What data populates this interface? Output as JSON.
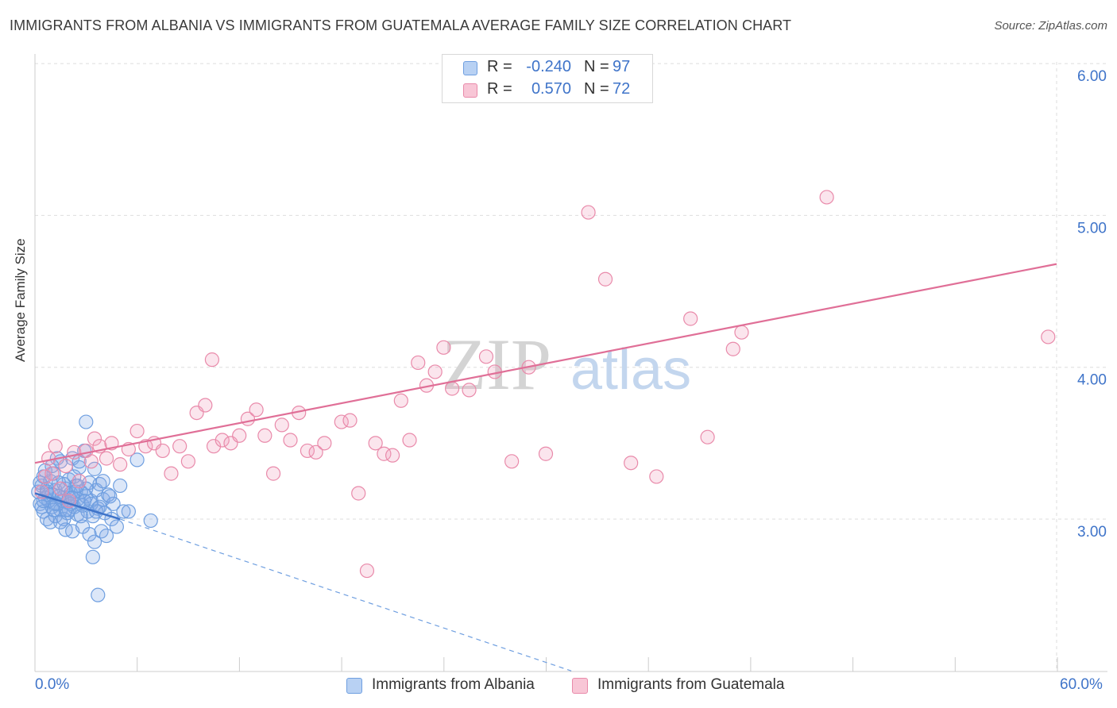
{
  "title": "IMMIGRANTS FROM ALBANIA VS IMMIGRANTS FROM GUATEMALA AVERAGE FAMILY SIZE CORRELATION CHART",
  "source": "Source: ZipAtlas.com",
  "watermark": {
    "zip": "ZIP",
    "atlas": "atlas"
  },
  "legend_top": [
    {
      "r_label": "R =",
      "r_value": "-0.240",
      "n_label": "N =",
      "n_value": "97",
      "swatch_fill": "#b8d1f3",
      "swatch_stroke": "#6f9fe0"
    },
    {
      "r_label": "R =",
      "r_value": "0.570",
      "n_label": "N =",
      "n_value": "72",
      "swatch_fill": "#f8c6d6",
      "swatch_stroke": "#e98aaa"
    }
  ],
  "colors": {
    "blue": "#3f74c9",
    "pink": "#e06f97",
    "grid": "#dddddd"
  },
  "chart_data": {
    "type": "scatter",
    "ylabel": "Average Family Size",
    "xlim": [
      0,
      60
    ],
    "ylim": [
      2.0,
      6.1
    ],
    "x_tick_labels": [
      "0.0%",
      "60.0%"
    ],
    "y_ticks": [
      3.0,
      4.0,
      5.0,
      6.0
    ],
    "y_tick_labels": [
      "3.00",
      "4.00",
      "5.00",
      "6.00"
    ],
    "grid": true,
    "legend_position": "bottom",
    "series": [
      {
        "name": "Immigrants from Albania",
        "color": "#6f9fe0",
        "points": [
          [
            0.2,
            3.18
          ],
          [
            0.3,
            3.1
          ],
          [
            0.4,
            3.22
          ],
          [
            0.5,
            3.05
          ],
          [
            0.5,
            3.28
          ],
          [
            0.6,
            3.14
          ],
          [
            0.7,
            3.2
          ],
          [
            0.7,
            3.0
          ],
          [
            0.8,
            3.12
          ],
          [
            0.9,
            3.25
          ],
          [
            1.0,
            3.08
          ],
          [
            1.0,
            3.16
          ],
          [
            1.1,
            3.3
          ],
          [
            1.2,
            3.02
          ],
          [
            1.2,
            3.19
          ],
          [
            1.3,
            3.1
          ],
          [
            1.4,
            3.24
          ],
          [
            1.5,
            3.06
          ],
          [
            1.5,
            3.38
          ],
          [
            1.6,
            3.14
          ],
          [
            1.7,
            3.0
          ],
          [
            1.8,
            3.2
          ],
          [
            1.8,
            2.93
          ],
          [
            1.9,
            3.11
          ],
          [
            2.0,
            3.26
          ],
          [
            2.0,
            3.06
          ],
          [
            2.1,
            3.17
          ],
          [
            2.2,
            3.4
          ],
          [
            2.2,
            2.92
          ],
          [
            2.3,
            3.08
          ],
          [
            2.4,
            3.22
          ],
          [
            2.5,
            3.13
          ],
          [
            2.5,
            3.03
          ],
          [
            2.6,
            3.34
          ],
          [
            2.7,
            3.18
          ],
          [
            2.8,
            2.95
          ],
          [
            2.8,
            3.09
          ],
          [
            2.9,
            3.45
          ],
          [
            3.0,
            3.15
          ],
          [
            3.0,
            3.64
          ],
          [
            3.1,
            3.05
          ],
          [
            3.2,
            3.24
          ],
          [
            3.2,
            2.9
          ],
          [
            3.3,
            3.12
          ],
          [
            3.4,
            3.02
          ],
          [
            3.5,
            3.33
          ],
          [
            3.5,
            2.85
          ],
          [
            3.6,
            3.19
          ],
          [
            3.7,
            3.07
          ],
          [
            3.8,
            3.23
          ],
          [
            3.9,
            2.92
          ],
          [
            4.0,
            3.13
          ],
          [
            4.1,
            3.04
          ],
          [
            4.2,
            2.89
          ],
          [
            4.3,
            3.16
          ],
          [
            4.5,
            3.0
          ],
          [
            4.6,
            3.1
          ],
          [
            4.8,
            2.95
          ],
          [
            5.0,
            3.22
          ],
          [
            5.2,
            3.05
          ],
          [
            3.4,
            2.75
          ],
          [
            3.7,
            2.5
          ],
          [
            5.5,
            3.05
          ],
          [
            6.0,
            3.39
          ],
          [
            6.8,
            2.99
          ],
          [
            1.3,
            3.4
          ],
          [
            2.6,
            3.38
          ],
          [
            0.9,
            2.98
          ],
          [
            1.6,
            3.12
          ],
          [
            2.3,
            3.28
          ],
          [
            0.4,
            3.08
          ],
          [
            0.6,
            3.32
          ],
          [
            0.8,
            3.16
          ],
          [
            1.1,
            3.06
          ],
          [
            1.4,
            3.15
          ],
          [
            1.7,
            3.23
          ],
          [
            1.9,
            3.04
          ],
          [
            2.1,
            3.1
          ],
          [
            2.4,
            3.18
          ],
          [
            2.7,
            3.02
          ],
          [
            3.0,
            3.2
          ],
          [
            3.3,
            3.1
          ],
          [
            3.6,
            3.05
          ],
          [
            4.0,
            3.25
          ],
          [
            4.4,
            3.15
          ],
          [
            1.0,
            3.35
          ],
          [
            1.5,
            2.98
          ],
          [
            2.0,
            3.14
          ],
          [
            2.5,
            3.22
          ],
          [
            3.8,
            3.08
          ],
          [
            0.3,
            3.24
          ],
          [
            0.5,
            3.12
          ],
          [
            0.7,
            3.18
          ],
          [
            1.2,
            3.1
          ],
          [
            1.8,
            3.06
          ],
          [
            2.2,
            3.14
          ],
          [
            2.9,
            3.12
          ]
        ]
      },
      {
        "name": "Immigrants from Guatemala",
        "color": "#e98aaa",
        "points": [
          [
            0.4,
            3.18
          ],
          [
            0.6,
            3.28
          ],
          [
            0.8,
            3.4
          ],
          [
            1.0,
            3.3
          ],
          [
            1.2,
            3.48
          ],
          [
            1.5,
            3.2
          ],
          [
            1.8,
            3.35
          ],
          [
            2.0,
            3.12
          ],
          [
            2.3,
            3.44
          ],
          [
            2.6,
            3.25
          ],
          [
            3.0,
            3.45
          ],
          [
            3.3,
            3.38
          ],
          [
            3.5,
            3.53
          ],
          [
            3.8,
            3.48
          ],
          [
            4.2,
            3.4
          ],
          [
            4.5,
            3.5
          ],
          [
            5.0,
            3.36
          ],
          [
            5.5,
            3.46
          ],
          [
            6.0,
            3.58
          ],
          [
            6.5,
            3.48
          ],
          [
            7.0,
            3.5
          ],
          [
            7.5,
            3.45
          ],
          [
            8.0,
            3.3
          ],
          [
            8.5,
            3.48
          ],
          [
            9.0,
            3.38
          ],
          [
            9.5,
            3.7
          ],
          [
            10.0,
            3.75
          ],
          [
            10.5,
            3.48
          ],
          [
            11.0,
            3.52
          ],
          [
            11.5,
            3.5
          ],
          [
            12.0,
            3.55
          ],
          [
            12.5,
            3.66
          ],
          [
            13.0,
            3.72
          ],
          [
            13.5,
            3.55
          ],
          [
            14.0,
            3.3
          ],
          [
            14.5,
            3.62
          ],
          [
            15.0,
            3.52
          ],
          [
            15.5,
            3.7
          ],
          [
            16.0,
            3.45
          ],
          [
            16.5,
            3.44
          ],
          [
            17.0,
            3.5
          ],
          [
            18.0,
            3.64
          ],
          [
            18.5,
            3.65
          ],
          [
            19.0,
            3.17
          ],
          [
            19.5,
            2.66
          ],
          [
            20.0,
            3.5
          ],
          [
            20.5,
            3.43
          ],
          [
            21.0,
            3.42
          ],
          [
            21.5,
            3.78
          ],
          [
            22.0,
            3.52
          ],
          [
            22.5,
            4.03
          ],
          [
            23.0,
            3.88
          ],
          [
            23.5,
            3.97
          ],
          [
            24.0,
            4.13
          ],
          [
            24.5,
            3.86
          ],
          [
            25.5,
            3.85
          ],
          [
            26.5,
            4.07
          ],
          [
            27.0,
            3.97
          ],
          [
            28.0,
            3.38
          ],
          [
            29.0,
            4.0
          ],
          [
            30.0,
            3.43
          ],
          [
            32.5,
            5.02
          ],
          [
            33.5,
            4.58
          ],
          [
            35.0,
            3.37
          ],
          [
            36.5,
            3.28
          ],
          [
            38.5,
            4.32
          ],
          [
            39.5,
            3.54
          ],
          [
            41.5,
            4.23
          ],
          [
            41.0,
            4.12
          ],
          [
            46.5,
            5.12
          ],
          [
            59.5,
            4.2
          ],
          [
            10.4,
            4.05
          ]
        ]
      }
    ],
    "trendlines": [
      {
        "series": "Immigrants from Albania",
        "solid": [
          [
            0.0,
            3.17
          ],
          [
            5.0,
            3.0
          ]
        ],
        "dashed": [
          [
            5.0,
            3.0
          ],
          [
            31.5,
            2.0
          ]
        ]
      },
      {
        "series": "Immigrants from Guatemala",
        "solid": [
          [
            0.0,
            3.37
          ],
          [
            60.0,
            4.68
          ]
        ]
      }
    ]
  }
}
